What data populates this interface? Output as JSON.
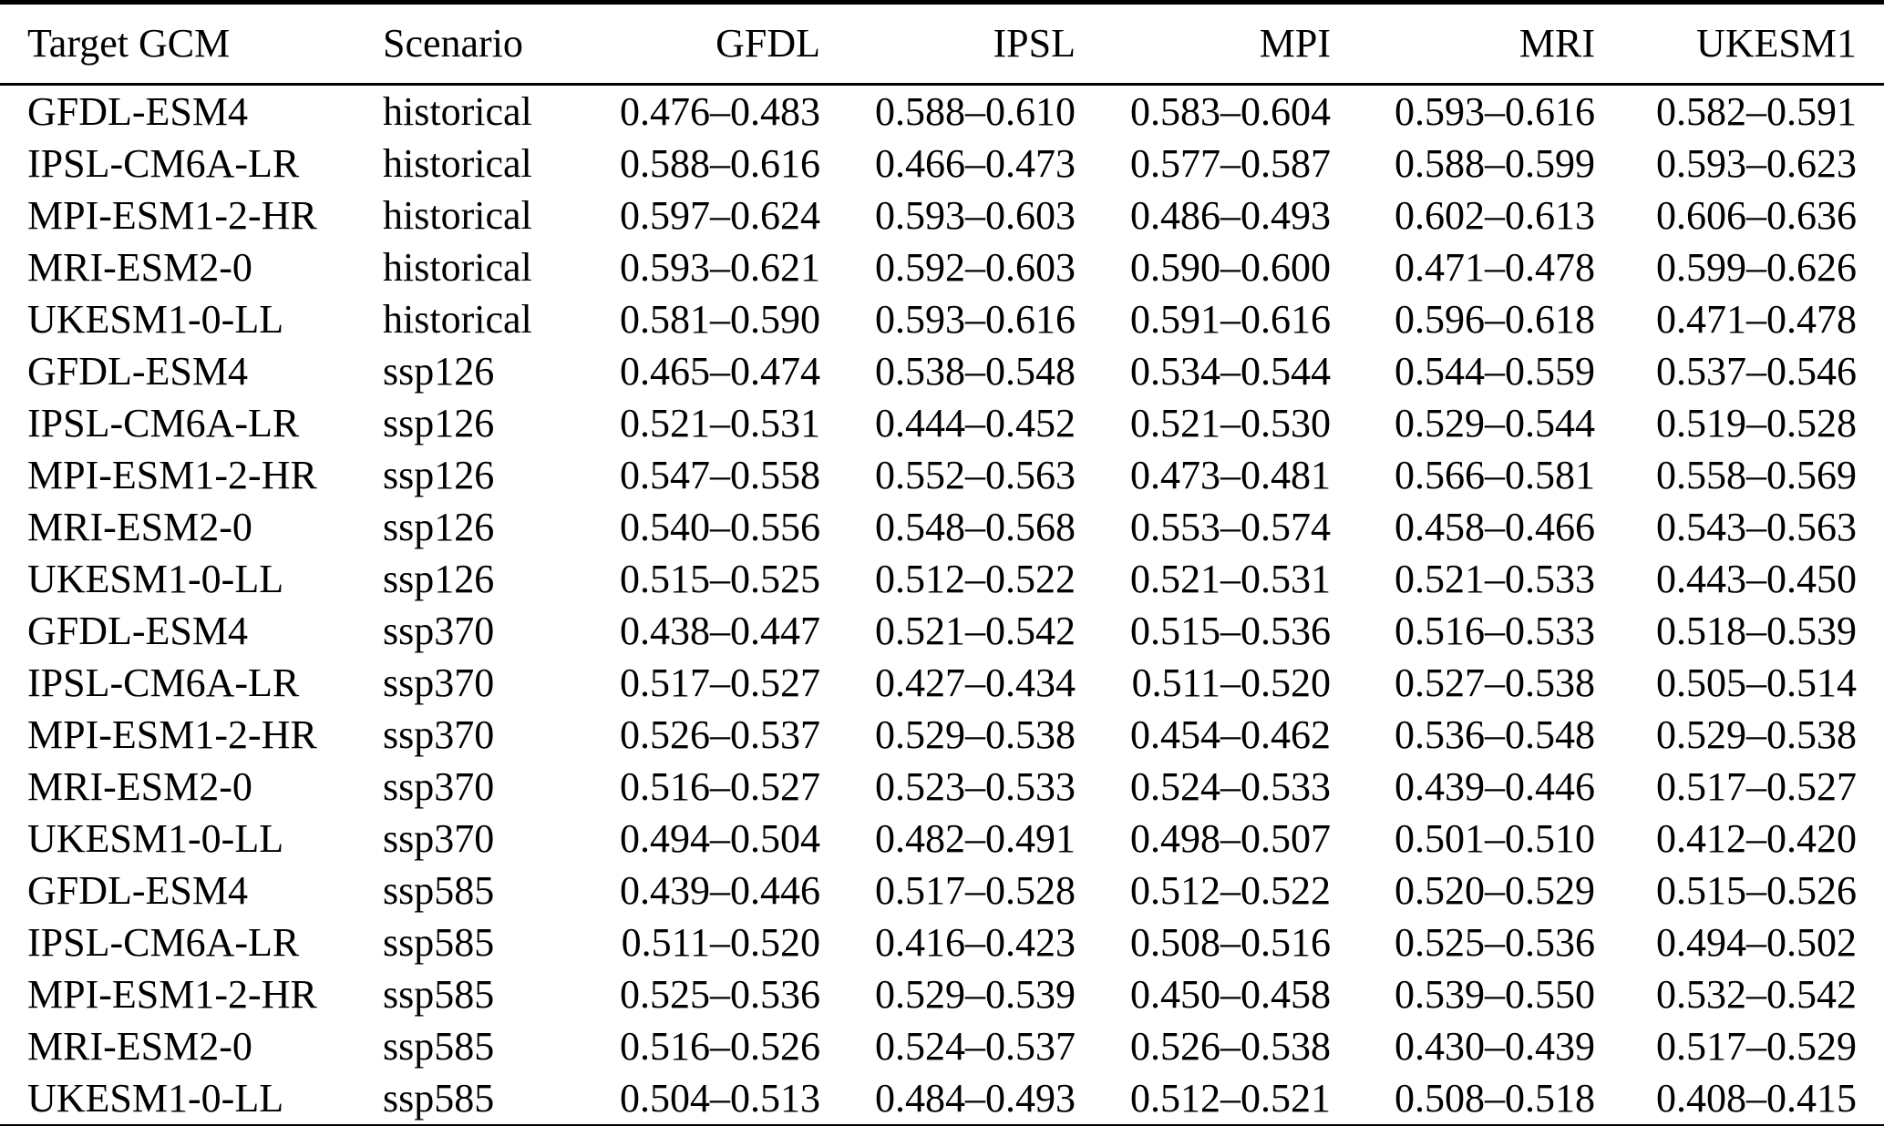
{
  "colors": {
    "background": "#ffffff",
    "text": "#000000",
    "rule": "#000000"
  },
  "table": {
    "columns": [
      "Target GCM",
      "Scenario",
      "GFDL",
      "IPSL",
      "MPI",
      "MRI",
      "UKESM1"
    ],
    "rows": [
      [
        "GFDL-ESM4",
        "historical",
        "0.476–0.483",
        "0.588–0.610",
        "0.583–0.604",
        "0.593–0.616",
        "0.582–0.591"
      ],
      [
        "IPSL-CM6A-LR",
        "historical",
        "0.588–0.616",
        "0.466–0.473",
        "0.577–0.587",
        "0.588–0.599",
        "0.593–0.623"
      ],
      [
        "MPI-ESM1-2-HR",
        "historical",
        "0.597–0.624",
        "0.593–0.603",
        "0.486–0.493",
        "0.602–0.613",
        "0.606–0.636"
      ],
      [
        "MRI-ESM2-0",
        "historical",
        "0.593–0.621",
        "0.592–0.603",
        "0.590–0.600",
        "0.471–0.478",
        "0.599–0.626"
      ],
      [
        "UKESM1-0-LL",
        "historical",
        "0.581–0.590",
        "0.593–0.616",
        "0.591–0.616",
        "0.596–0.618",
        "0.471–0.478"
      ],
      [
        "GFDL-ESM4",
        "ssp126",
        "0.465–0.474",
        "0.538–0.548",
        "0.534–0.544",
        "0.544–0.559",
        "0.537–0.546"
      ],
      [
        "IPSL-CM6A-LR",
        "ssp126",
        "0.521–0.531",
        "0.444–0.452",
        "0.521–0.530",
        "0.529–0.544",
        "0.519–0.528"
      ],
      [
        "MPI-ESM1-2-HR",
        "ssp126",
        "0.547–0.558",
        "0.552–0.563",
        "0.473–0.481",
        "0.566–0.581",
        "0.558–0.569"
      ],
      [
        "MRI-ESM2-0",
        "ssp126",
        "0.540–0.556",
        "0.548–0.568",
        "0.553–0.574",
        "0.458–0.466",
        "0.543–0.563"
      ],
      [
        "UKESM1-0-LL",
        "ssp126",
        "0.515–0.525",
        "0.512–0.522",
        "0.521–0.531",
        "0.521–0.533",
        "0.443–0.450"
      ],
      [
        "GFDL-ESM4",
        "ssp370",
        "0.438–0.447",
        "0.521–0.542",
        "0.515–0.536",
        "0.516–0.533",
        "0.518–0.539"
      ],
      [
        "IPSL-CM6A-LR",
        "ssp370",
        "0.517–0.527",
        "0.427–0.434",
        "0.511–0.520",
        "0.527–0.538",
        "0.505–0.514"
      ],
      [
        "MPI-ESM1-2-HR",
        "ssp370",
        "0.526–0.537",
        "0.529–0.538",
        "0.454–0.462",
        "0.536–0.548",
        "0.529–0.538"
      ],
      [
        "MRI-ESM2-0",
        "ssp370",
        "0.516–0.527",
        "0.523–0.533",
        "0.524–0.533",
        "0.439–0.446",
        "0.517–0.527"
      ],
      [
        "UKESM1-0-LL",
        "ssp370",
        "0.494–0.504",
        "0.482–0.491",
        "0.498–0.507",
        "0.501–0.510",
        "0.412–0.420"
      ],
      [
        "GFDL-ESM4",
        "ssp585",
        "0.439–0.446",
        "0.517–0.528",
        "0.512–0.522",
        "0.520–0.529",
        "0.515–0.526"
      ],
      [
        "IPSL-CM6A-LR",
        "ssp585",
        "0.511–0.520",
        "0.416–0.423",
        "0.508–0.516",
        "0.525–0.536",
        "0.494–0.502"
      ],
      [
        "MPI-ESM1-2-HR",
        "ssp585",
        "0.525–0.536",
        "0.529–0.539",
        "0.450–0.458",
        "0.539–0.550",
        "0.532–0.542"
      ],
      [
        "MRI-ESM2-0",
        "ssp585",
        "0.516–0.526",
        "0.524–0.537",
        "0.526–0.538",
        "0.430–0.439",
        "0.517–0.529"
      ],
      [
        "UKESM1-0-LL",
        "ssp585",
        "0.504–0.513",
        "0.484–0.493",
        "0.512–0.521",
        "0.508–0.518",
        "0.408–0.415"
      ]
    ]
  }
}
